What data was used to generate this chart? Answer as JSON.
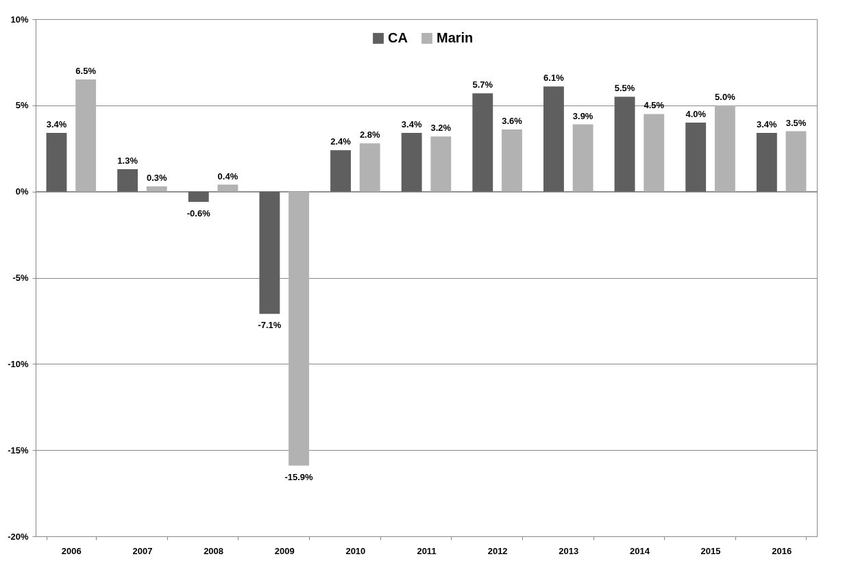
{
  "chart_data": {
    "type": "bar",
    "categories": [
      "2006",
      "2007",
      "2008",
      "2009",
      "2010",
      "2011",
      "2012",
      "2013",
      "2014",
      "2015",
      "2016"
    ],
    "series": [
      {
        "name": "CA",
        "color": "#5f5f5f",
        "values": [
          3.4,
          1.3,
          -0.6,
          -7.1,
          2.4,
          3.4,
          5.7,
          6.1,
          5.5,
          4.0,
          3.4
        ],
        "value_labels": [
          "3.4%",
          "1.3%",
          "-0.6%",
          "-7.1%",
          "2.4%",
          "3.4%",
          "5.7%",
          "6.1%",
          "5.5%",
          "4.0%",
          "3.4%"
        ]
      },
      {
        "name": "Marin",
        "color": "#b2b2b2",
        "values": [
          6.5,
          0.3,
          0.4,
          -15.9,
          2.8,
          3.2,
          3.6,
          3.9,
          4.5,
          5.0,
          3.5
        ],
        "value_labels": [
          "6.5%",
          "0.3%",
          "0.4%",
          "-15.9%",
          "2.8%",
          "3.2%",
          "3.6%",
          "3.9%",
          "4.5%",
          "5.0%",
          "3.5%"
        ]
      }
    ],
    "ylim": [
      -20,
      10
    ],
    "yticks": [
      {
        "value": -20,
        "label": "-20%"
      },
      {
        "value": -15,
        "label": "-15%"
      },
      {
        "value": -10,
        "label": "-10%"
      },
      {
        "value": -5,
        "label": "-5%"
      },
      {
        "value": 0,
        "label": "0%"
      },
      {
        "value": 5,
        "label": "5%"
      },
      {
        "value": 10,
        "label": "10%"
      }
    ],
    "grid": "y",
    "legend": "top"
  }
}
